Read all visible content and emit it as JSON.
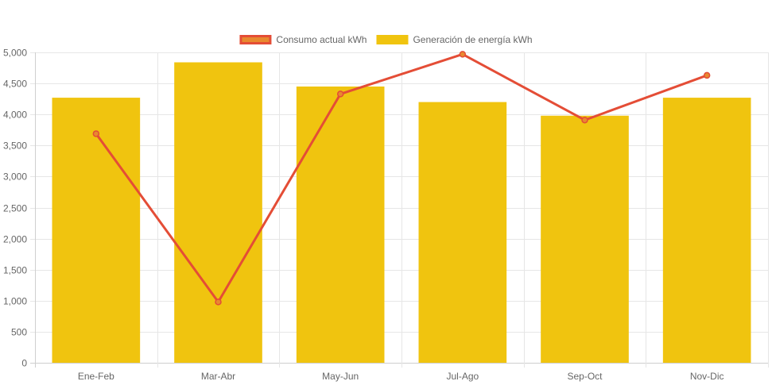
{
  "chart_data": {
    "type": "bar",
    "title": "",
    "xlabel": "",
    "ylabel": "",
    "categories": [
      "Ene-Feb",
      "Mar-Abr",
      "May-Jun",
      "Jul-Ago",
      "Sep-Oct",
      "Nov-Dic"
    ],
    "ylim": [
      0,
      5000
    ],
    "yticks": [
      0,
      500,
      1000,
      1500,
      2000,
      2500,
      3000,
      3500,
      4000,
      4500,
      5000
    ],
    "ytick_labels": [
      "0",
      "500",
      "1,000",
      "1,500",
      "2,000",
      "2,500",
      "3,000",
      "3,500",
      "4,000",
      "4,500",
      "5,000"
    ],
    "grid": true,
    "legend_position": "top-center",
    "series": [
      {
        "name": "Consumo actual kWh",
        "type": "line",
        "color": "#e44d36",
        "fill": "#e8892f",
        "values": [
          3690,
          980,
          4330,
          4970,
          3910,
          4630
        ]
      },
      {
        "name": "Generación de energía kWh",
        "type": "bar",
        "color": "#f0c40f",
        "values": [
          4270,
          4840,
          4450,
          4200,
          3980,
          4270
        ]
      }
    ]
  }
}
